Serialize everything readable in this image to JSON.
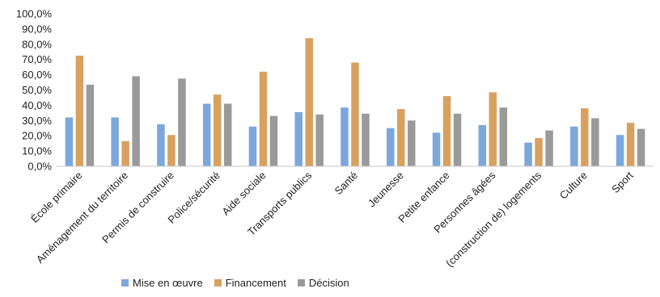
{
  "chart_data": {
    "type": "bar",
    "categories": [
      "École primaire",
      "Aménagement du territoire",
      "Permis de construire",
      "Police/sécurité",
      "Aide sociale",
      "Transports publics",
      "Santé",
      "Jeunesse",
      "Petite enfance",
      "Personnes âgées",
      "(construction  de) logements",
      "Culture",
      "Sport"
    ],
    "series": [
      {
        "name": "Mise en œuvre",
        "color": "#7ba7dd",
        "values": [
          32.0,
          32.0,
          27.5,
          41.0,
          26.0,
          35.5,
          38.5,
          25.0,
          22.0,
          27.0,
          15.5,
          26.0,
          20.5
        ]
      },
      {
        "name": "Financement",
        "color": "#d8a15f",
        "values": [
          72.5,
          16.5,
          20.5,
          47.0,
          62.0,
          84.0,
          68.0,
          37.5,
          46.0,
          48.5,
          18.5,
          38.0,
          28.5
        ]
      },
      {
        "name": "Décision",
        "color": "#9a9a9a",
        "values": [
          53.5,
          59.0,
          57.5,
          41.0,
          33.0,
          34.0,
          34.5,
          30.0,
          34.5,
          38.5,
          23.5,
          31.5,
          24.5
        ]
      }
    ],
    "yticks": [
      "0,0%",
      "10,0%",
      "20,0%",
      "30,0%",
      "40,0%",
      "50,0%",
      "60,0%",
      "70,0%",
      "80,0%",
      "90,0%",
      "100,0%"
    ],
    "ylim": [
      0,
      100
    ],
    "grid": false,
    "legend_position": "bottom"
  }
}
